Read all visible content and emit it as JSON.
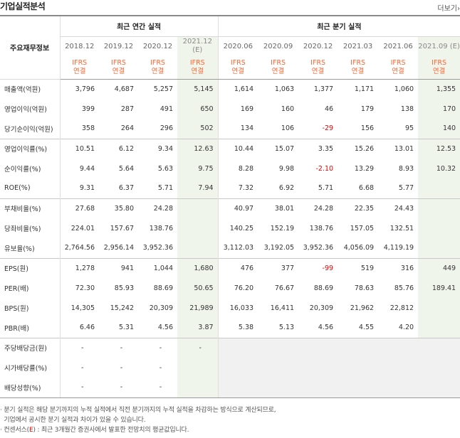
{
  "title": "기업실적분석",
  "more_label": "더보기",
  "more_arrow": "›",
  "header": {
    "row_label_head": "주요재무정보",
    "annual_group": "최근 연간 실적",
    "quarter_group": "최근 분기 실적",
    "annual_periods": [
      "2018.12",
      "2019.12",
      "2020.12",
      "2021.12"
    ],
    "annual_estimate_mark": "(E)",
    "quarter_periods": [
      "2020.06",
      "2020.09",
      "2020.12",
      "2021.03",
      "2021.06",
      "2021.09"
    ],
    "quarter_estimate_mark": "(E)",
    "ifrs_top": "IFRS",
    "ifrs_bottom": "연결"
  },
  "rows": [
    {
      "label": "매출액(억원)",
      "annual": [
        "3,796",
        "4,687",
        "5,257",
        "5,145"
      ],
      "quarter": [
        "1,614",
        "1,063",
        "1,377",
        "1,171",
        "1,060",
        "1,355"
      ]
    },
    {
      "label": "영업이익(억원)",
      "annual": [
        "399",
        "287",
        "491",
        "650"
      ],
      "quarter": [
        "169",
        "160",
        "46",
        "179",
        "138",
        "170"
      ]
    },
    {
      "label": "당기순이익(억원)",
      "annual": [
        "358",
        "264",
        "296",
        "502"
      ],
      "quarter": [
        "134",
        "106",
        "-29",
        "156",
        "95",
        "140"
      ]
    },
    {
      "label": "영업이익률(%)",
      "annual": [
        "10.51",
        "6.12",
        "9.34",
        "12.63"
      ],
      "quarter": [
        "10.44",
        "15.07",
        "3.35",
        "15.26",
        "13.01",
        "12.53"
      ]
    },
    {
      "label": "순이익률(%)",
      "annual": [
        "9.44",
        "5.64",
        "5.63",
        "9.75"
      ],
      "quarter": [
        "8.28",
        "9.98",
        "-2.10",
        "13.29",
        "8.93",
        "10.32"
      ]
    },
    {
      "label": "ROE(%)",
      "annual": [
        "9.31",
        "6.37",
        "5.71",
        "7.94"
      ],
      "quarter": [
        "7.32",
        "6.92",
        "5.71",
        "6.68",
        "5.77",
        ""
      ]
    },
    {
      "label": "부채비율(%)",
      "annual": [
        "27.68",
        "35.80",
        "24.28",
        ""
      ],
      "quarter": [
        "40.97",
        "38.01",
        "24.28",
        "22.35",
        "24.43",
        ""
      ]
    },
    {
      "label": "당좌비율(%)",
      "annual": [
        "224.01",
        "157.67",
        "138.76",
        ""
      ],
      "quarter": [
        "140.25",
        "152.19",
        "138.76",
        "157.05",
        "132.51",
        ""
      ]
    },
    {
      "label": "유보율(%)",
      "annual": [
        "2,764.56",
        "2,956.14",
        "3,952.36",
        ""
      ],
      "quarter": [
        "3,112.03",
        "3,192.05",
        "3,952.36",
        "4,056.09",
        "4,119.19",
        ""
      ]
    },
    {
      "label": "EPS(원)",
      "annual": [
        "1,278",
        "941",
        "1,044",
        "1,680"
      ],
      "quarter": [
        "476",
        "377",
        "-99",
        "519",
        "316",
        "449"
      ]
    },
    {
      "label": "PER(배)",
      "annual": [
        "72.30",
        "85.93",
        "88.69",
        "50.65"
      ],
      "quarter": [
        "76.20",
        "76.67",
        "88.69",
        "78.63",
        "85.76",
        "189.41"
      ]
    },
    {
      "label": "BPS(원)",
      "annual": [
        "14,305",
        "15,242",
        "20,309",
        "21,989"
      ],
      "quarter": [
        "16,033",
        "16,411",
        "20,309",
        "21,962",
        "22,812",
        ""
      ]
    },
    {
      "label": "PBR(배)",
      "annual": [
        "6.46",
        "5.31",
        "4.56",
        "3.87"
      ],
      "quarter": [
        "5.38",
        "5.13",
        "4.56",
        "4.55",
        "4.20",
        ""
      ]
    },
    {
      "label": "주당배당금(원)",
      "annual": [
        "-",
        "-",
        "-",
        "-"
      ],
      "quarter": [
        "",
        "",
        "",
        "",
        "",
        ""
      ]
    },
    {
      "label": "시가배당률(%)",
      "annual": [
        "-",
        "-",
        "-",
        ""
      ],
      "quarter": [
        "",
        "",
        "",
        "",
        "",
        ""
      ]
    },
    {
      "label": "배당성향(%)",
      "annual": [
        "-",
        "-",
        "-",
        ""
      ],
      "quarter": [
        "",
        "",
        "",
        "",
        "",
        ""
      ]
    }
  ],
  "notes": {
    "line1": "· 분기 실적은 해당 분기까지의 누적 실적에서 직전 분기까지의 누적 실적을 차감하는 방식으로 계산되므로,",
    "line2": "  기업에서 공시한 분기 실적과 차이가 있을 수 있습니다.",
    "line3_pre": "· 컨센서스(",
    "line3_e": "E",
    "line3_post": ") : 최근 3개월간 증권사에서 발표한 전망치의 평균값입니다."
  },
  "colors": {
    "ifrs": "#ff6633",
    "negative": "#e60000",
    "estimate_bg": "#f0f5ec",
    "blank_bg": "#f1f1f1"
  }
}
